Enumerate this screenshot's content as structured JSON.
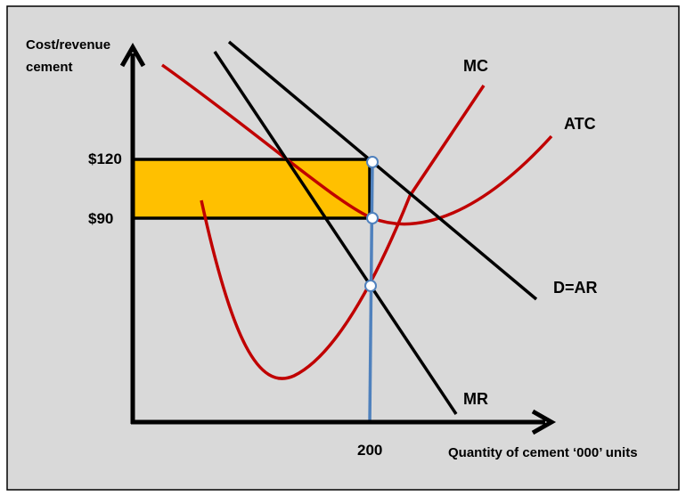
{
  "labels": {
    "y_axis_line1": "Cost/revenue",
    "y_axis_line2": "cement",
    "x_axis": "Quantity of cement ‘000’ units",
    "price": "$120",
    "cost": "$90",
    "quantity": "200",
    "mc": "MC",
    "atc": "ATC",
    "demand": "D=AR",
    "mr": "MR"
  },
  "colors": {
    "background": "#d9d9d9",
    "curve_red": "#c00000",
    "profit_area": "#ffc000",
    "quantity_line": "#4f81bd",
    "lines": "#000000"
  }
}
